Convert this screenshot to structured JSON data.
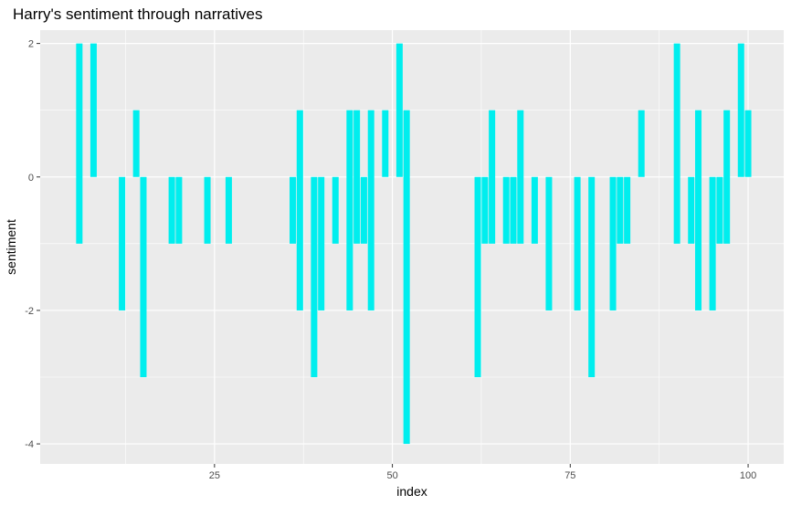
{
  "chart_data": {
    "type": "bar",
    "title": "Harry's sentiment through narratives",
    "xlabel": "index",
    "ylabel": "sentiment",
    "xlim": [
      0.5,
      105
    ],
    "ylim": [
      -4.3,
      2.2
    ],
    "x_ticks": [
      25,
      50,
      75,
      100
    ],
    "y_ticks": [
      -4,
      -2,
      0,
      2
    ],
    "grid": true,
    "legend": "none",
    "colors": {
      "bar": "#00EEEE",
      "panel": "#EBEBEB",
      "grid": "#FFFFFF"
    },
    "series": [
      {
        "values": [
          {
            "x": 6,
            "y": [
              -1,
              2
            ]
          },
          {
            "x": 8,
            "y": [
              0,
              2
            ]
          },
          {
            "x": 12,
            "y": [
              -2,
              0
            ]
          },
          {
            "x": 14,
            "y": [
              0,
              1
            ]
          },
          {
            "x": 15,
            "y": [
              -3,
              0
            ]
          },
          {
            "x": 19,
            "y": [
              -1,
              0
            ]
          },
          {
            "x": 20,
            "y": [
              -1,
              0
            ]
          },
          {
            "x": 24,
            "y": [
              -1,
              0
            ]
          },
          {
            "x": 27,
            "y": [
              -1,
              0
            ]
          },
          {
            "x": 36,
            "y": [
              -1,
              0
            ]
          },
          {
            "x": 37,
            "y": [
              -2,
              1
            ]
          },
          {
            "x": 39,
            "y": [
              -3,
              0
            ]
          },
          {
            "x": 40,
            "y": [
              -2,
              0
            ]
          },
          {
            "x": 42,
            "y": [
              -1,
              0
            ]
          },
          {
            "x": 44,
            "y": [
              -2,
              1
            ]
          },
          {
            "x": 45,
            "y": [
              -1,
              1
            ]
          },
          {
            "x": 46,
            "y": [
              -1,
              0
            ]
          },
          {
            "x": 47,
            "y": [
              -2,
              1
            ]
          },
          {
            "x": 49,
            "y": [
              0,
              1
            ]
          },
          {
            "x": 51,
            "y": [
              0,
              2
            ]
          },
          {
            "x": 52,
            "y": [
              -4,
              1
            ]
          },
          {
            "x": 62,
            "y": [
              -3,
              0
            ]
          },
          {
            "x": 63,
            "y": [
              -1,
              0
            ]
          },
          {
            "x": 64,
            "y": [
              -1,
              1
            ]
          },
          {
            "x": 66,
            "y": [
              -1,
              0
            ]
          },
          {
            "x": 67,
            "y": [
              -1,
              0
            ]
          },
          {
            "x": 68,
            "y": [
              -1,
              1
            ]
          },
          {
            "x": 70,
            "y": [
              -1,
              0
            ]
          },
          {
            "x": 72,
            "y": [
              -2,
              0
            ]
          },
          {
            "x": 76,
            "y": [
              -2,
              0
            ]
          },
          {
            "x": 78,
            "y": [
              -3,
              0
            ]
          },
          {
            "x": 81,
            "y": [
              -2,
              0
            ]
          },
          {
            "x": 82,
            "y": [
              -1,
              0
            ]
          },
          {
            "x": 83,
            "y": [
              -1,
              0
            ]
          },
          {
            "x": 85,
            "y": [
              0,
              1
            ]
          },
          {
            "x": 90,
            "y": [
              -1,
              2
            ]
          },
          {
            "x": 92,
            "y": [
              -1,
              0
            ]
          },
          {
            "x": 93,
            "y": [
              -2,
              1
            ]
          },
          {
            "x": 95,
            "y": [
              -2,
              0
            ]
          },
          {
            "x": 96,
            "y": [
              -1,
              0
            ]
          },
          {
            "x": 97,
            "y": [
              -1,
              1
            ]
          },
          {
            "x": 99,
            "y": [
              0,
              2
            ]
          },
          {
            "x": 100,
            "y": [
              0,
              1
            ]
          }
        ]
      }
    ]
  }
}
